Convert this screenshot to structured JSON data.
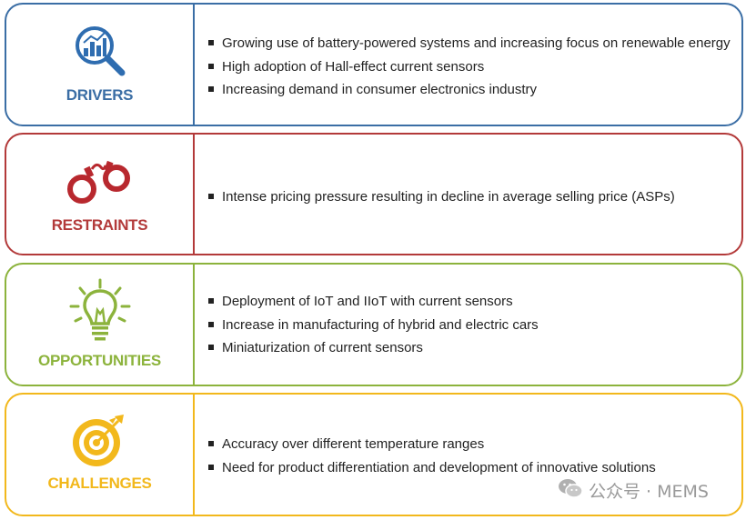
{
  "panels": [
    {
      "title": "DRIVERS",
      "color": "#3b6ea5",
      "icon": "magnifier-chart-icon",
      "bullets": [
        "Growing use of battery-powered systems and increasing focus on renewable energy",
        "High adoption of Hall-effect current sensors",
        "Increasing demand in consumer electronics industry"
      ]
    },
    {
      "title": "RESTRAINTS",
      "color": "#b33a3a",
      "icon": "handcuffs-icon",
      "bullets": [
        "Intense pricing pressure resulting in decline in average selling price (ASPs)"
      ]
    },
    {
      "title": "OPPORTUNITIES",
      "color": "#8cb33c",
      "icon": "lightbulb-icon",
      "bullets": [
        "Deployment of IoT and IIoT with current sensors",
        "Increase in manufacturing of hybrid and electric cars",
        "Miniaturization of current sensors"
      ]
    },
    {
      "title": "CHALLENGES",
      "color": "#f2b81c",
      "icon": "target-icon",
      "bullets": [
        "Accuracy over different temperature ranges",
        "Need for product differentiation and development of innovative solutions"
      ]
    }
  ],
  "watermark": {
    "text": "公众号 · MEMS",
    "icon": "wechat-icon"
  }
}
